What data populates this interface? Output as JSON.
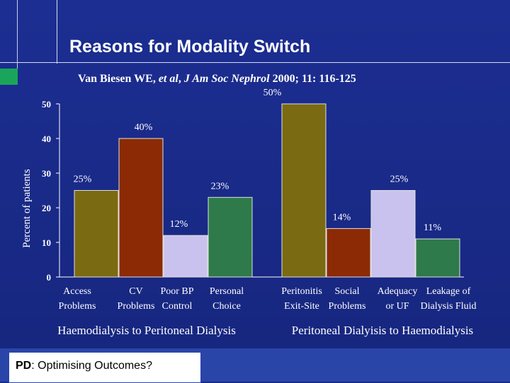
{
  "slide": {
    "title": "Reasons for Modality Switch",
    "subtitle_authors": "Van Biesen WE, ",
    "subtitle_etal": "et al",
    "subtitle_sep": ", ",
    "subtitle_journal": "J Am Soc Nephrol",
    "subtitle_rest": " 2000; 11: 116-125",
    "footer_prefix": "PD",
    "footer_text": ": Optimising Outcomes?"
  },
  "chart_data": {
    "type": "bar",
    "ylabel": "Percent of patients",
    "ylim": [
      0,
      50
    ],
    "yticks": [
      "0",
      "10",
      "20",
      "30",
      "40",
      "50"
    ],
    "groups": [
      {
        "name": "Haemodialysis to Peritoneal Dialysis",
        "bars": [
          {
            "label1": "Access",
            "label2": "Problems",
            "value": 25,
            "label": "25%",
            "color": "#7a6a12"
          },
          {
            "label1": "CV",
            "label2": "Problems",
            "value": 40,
            "label": "40%",
            "color": "#8c2a06"
          },
          {
            "label1": "Poor BP",
            "label2": "Control",
            "value": 12,
            "label": "12%",
            "color": "#c9c2ee"
          },
          {
            "label1": "Personal",
            "label2": "Choice",
            "value": 23,
            "label": "23%",
            "color": "#2e7a4a"
          }
        ]
      },
      {
        "name": "Peritoneal Dialyisis to Haemodialysis",
        "bars": [
          {
            "label1": "Peritonitis",
            "label2": "Exit-Site",
            "value": 50,
            "label": "50%",
            "color": "#7a6a12"
          },
          {
            "label1": "Social",
            "label2": "Problems",
            "value": 14,
            "label": "14%",
            "color": "#8c2a06"
          },
          {
            "label1": "Adequacy",
            "label2": "or UF",
            "value": 25,
            "label": "25%",
            "color": "#c9c2ee"
          },
          {
            "label1": "Leakage of",
            "label2": "Dialysis Fluid",
            "value": 11,
            "label": "11%",
            "color": "#2e7a4a"
          }
        ]
      }
    ]
  }
}
